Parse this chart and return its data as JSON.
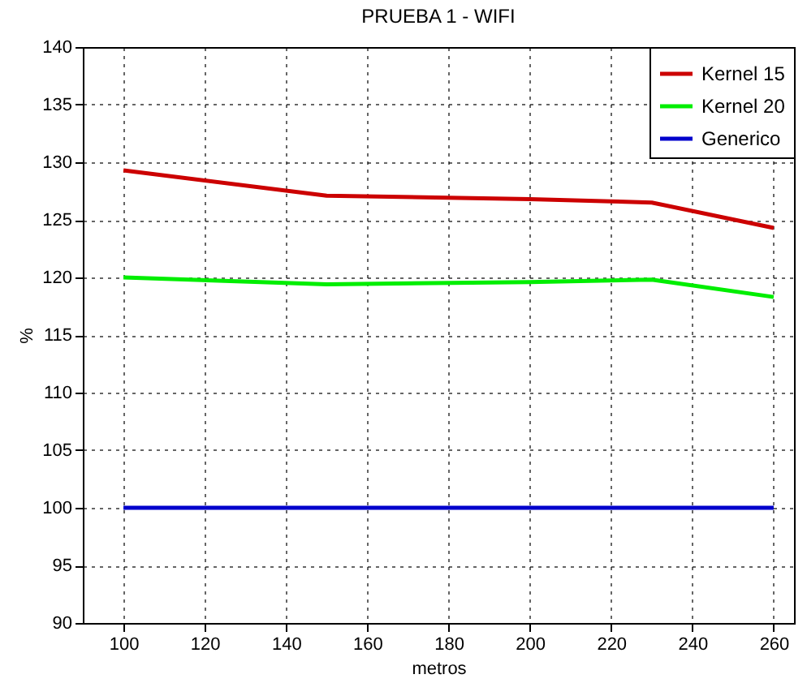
{
  "chart_data": {
    "type": "line",
    "title": "PRUEBA 1 - WIFI",
    "xlabel": "metros",
    "ylabel": "%",
    "xlim": [
      90,
      265
    ],
    "xticks": [
      100,
      120,
      140,
      160,
      180,
      200,
      220,
      240,
      260
    ],
    "ylim": [
      90,
      140
    ],
    "yticks": [
      90,
      95,
      100,
      105,
      110,
      115,
      120,
      125,
      130,
      135,
      140
    ],
    "grid": true,
    "legend": "top right",
    "marker": "none",
    "line_style": "solid",
    "series": [
      {
        "name": "Kernel 15",
        "color": "#cc0000",
        "x": [
          100,
          150,
          200,
          220,
          230,
          260
        ],
        "values": [
          129.3,
          127.1,
          126.8,
          126.6,
          126.5,
          124.3
        ]
      },
      {
        "name": "Kernel 20",
        "color": "#00ee00",
        "x": [
          100,
          150,
          200,
          230,
          260
        ],
        "values": [
          120.0,
          119.4,
          119.6,
          119.8,
          118.3
        ]
      },
      {
        "name": "Generico",
        "color": "#0000cc",
        "x": [
          100,
          260
        ],
        "values": [
          100,
          100
        ]
      }
    ]
  }
}
